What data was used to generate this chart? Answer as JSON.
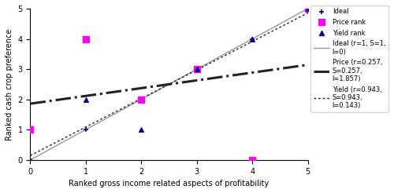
{
  "ideal_x": [
    0,
    1,
    2,
    3,
    4,
    5
  ],
  "ideal_y": [
    0,
    1,
    2,
    3,
    4,
    5
  ],
  "price_x": [
    0,
    1,
    2,
    3,
    4,
    5
  ],
  "price_y": [
    1,
    4,
    2,
    3,
    0,
    5
  ],
  "yield_x": [
    0,
    1,
    2,
    3,
    4,
    5
  ],
  "yield_y": [
    0,
    2,
    1,
    3,
    4,
    5
  ],
  "ideal_line_slope": 1,
  "ideal_line_intercept": 0,
  "price_line_slope": 0.257,
  "price_line_intercept": 1.857,
  "yield_line_slope": 0.943,
  "yield_line_intercept": 0.143,
  "xlim": [
    0,
    5
  ],
  "ylim": [
    0,
    5
  ],
  "xlabel": "Ranked gross income related aspects of profitability",
  "ylabel": "Ranked cash crop preference",
  "ideal_marker_color": "#000080",
  "price_marker_color": "#ff00ff",
  "yield_marker_color": "#000080",
  "ideal_line_color": "#999999",
  "price_line_color": "#222222",
  "yield_line_color": "#222222",
  "legend_ideal_label": "Ideal",
  "legend_price_label": "Price rank",
  "legend_yield_label": "Yield rank",
  "legend_ideal_line_label": "Ideal (r=1, S=1,\nl=0)",
  "legend_price_line_label": "Price (r=0.257,\nS=0.257,\nl=1.857)",
  "legend_yield_line_label": "Yield (r=0.943,\nS=0.943,\nl=0.143)",
  "xticks": [
    0,
    1,
    2,
    3,
    4,
    5
  ],
  "yticks": [
    0,
    1,
    2,
    3,
    4,
    5
  ],
  "figwidth": 5.0,
  "figheight": 2.46,
  "dpi": 100
}
